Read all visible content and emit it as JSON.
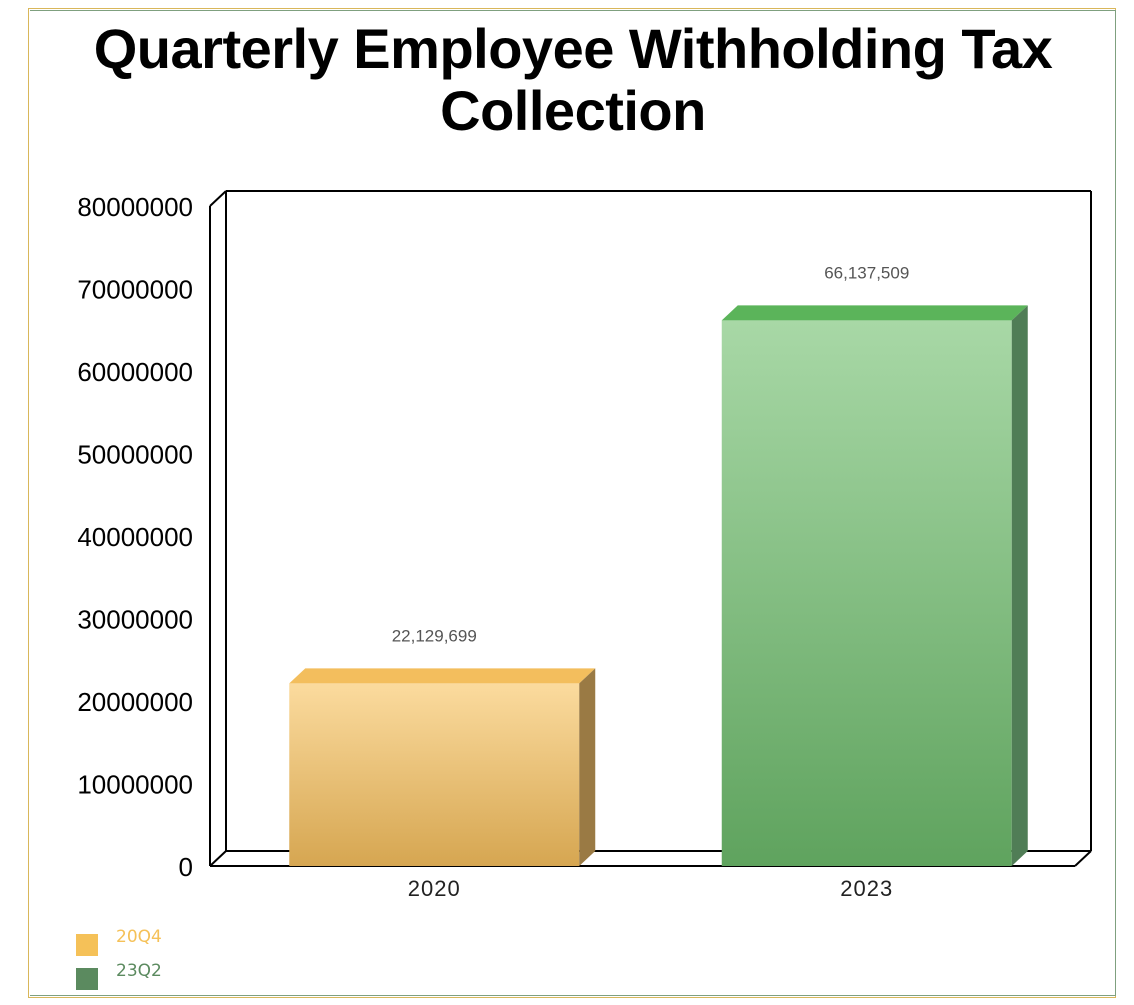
{
  "chart_data": {
    "type": "bar",
    "title": "Quarterly Employee Withholding Tax Collection",
    "categories": [
      "2020",
      "2023"
    ],
    "values": [
      22129699,
      66137509
    ],
    "value_labels": [
      "22,129,699",
      "66,137,509"
    ],
    "yticks": [
      "0",
      "10000000",
      "20000000",
      "30000000",
      "40000000",
      "50000000",
      "60000000",
      "70000000",
      "80000000"
    ],
    "ylim": [
      0,
      80000000
    ],
    "style": "3d",
    "legend_position": "bottom-left",
    "legend": [
      {
        "label": "20Q4",
        "color": "#f5c158"
      },
      {
        "label": "23Q2",
        "color": "#5b8a5f"
      }
    ],
    "bar_colors": [
      {
        "top": "#fbdb9e",
        "bottom": "#d6a651",
        "side": "#9a7a44",
        "cap": "#f3be5d"
      },
      {
        "top": "#a8d8a6",
        "bottom": "#5fa35e",
        "side": "#507d56",
        "cap": "#5bb45a"
      }
    ]
  }
}
